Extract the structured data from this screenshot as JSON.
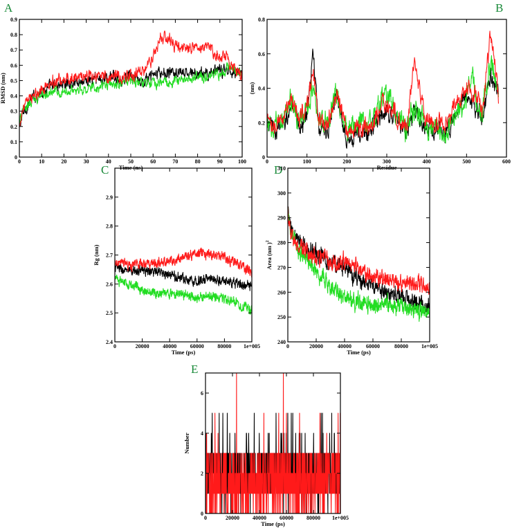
{
  "colors": {
    "black": "#000000",
    "red": "#ff1a1a",
    "green": "#22dd22",
    "letter": "#1a8a3a"
  },
  "chart_data": [
    {
      "id": "A",
      "type": "line",
      "panel_label": "A",
      "xlabel": "Time (ns)",
      "ylabel": "RMSD (nm)",
      "xlim": [
        0,
        100
      ],
      "ylim": [
        0,
        0.9
      ],
      "xticks": [
        0,
        10,
        20,
        30,
        40,
        50,
        60,
        70,
        80,
        90,
        100
      ],
      "yticks": [
        0,
        0.1,
        0.2,
        0.3,
        0.4,
        0.5,
        0.6,
        0.7,
        0.8,
        0.9
      ],
      "xtick_labels": [
        "0",
        "10",
        "20",
        "30",
        "40",
        "50",
        "60",
        "70",
        "80",
        "90",
        "100"
      ],
      "ytick_labels": [
        "0",
        "0.1",
        "0.2",
        "0.3",
        "0.4",
        "0.5",
        "0.6",
        "0.7",
        "0.8",
        "0.9"
      ],
      "grid": false,
      "series": [
        {
          "color": "black",
          "x": [
            0,
            2,
            5,
            10,
            15,
            20,
            30,
            40,
            50,
            55,
            60,
            70,
            80,
            90,
            95,
            100
          ],
          "y": [
            0.2,
            0.3,
            0.37,
            0.43,
            0.46,
            0.48,
            0.5,
            0.52,
            0.52,
            0.48,
            0.54,
            0.55,
            0.54,
            0.56,
            0.57,
            0.55
          ],
          "noise": 0.03
        },
        {
          "color": "green",
          "x": [
            0,
            2,
            5,
            10,
            15,
            20,
            30,
            40,
            50,
            60,
            70,
            80,
            90,
            95,
            100
          ],
          "y": [
            0.22,
            0.32,
            0.36,
            0.4,
            0.42,
            0.43,
            0.45,
            0.47,
            0.49,
            0.48,
            0.5,
            0.52,
            0.55,
            0.58,
            0.56
          ],
          "noise": 0.025
        },
        {
          "color": "red",
          "x": [
            0,
            2,
            5,
            10,
            15,
            20,
            30,
            40,
            50,
            55,
            60,
            63,
            66,
            70,
            80,
            85,
            90,
            93,
            96,
            100
          ],
          "y": [
            0.2,
            0.33,
            0.38,
            0.44,
            0.49,
            0.52,
            0.52,
            0.53,
            0.53,
            0.55,
            0.65,
            0.76,
            0.78,
            0.72,
            0.71,
            0.72,
            0.65,
            0.66,
            0.6,
            0.52
          ],
          "noise": 0.03
        }
      ]
    },
    {
      "id": "B",
      "type": "line",
      "panel_label": "B",
      "xlabel": "Residue",
      "ylabel": "(nm)",
      "xlim": [
        0,
        600
      ],
      "ylim": [
        0,
        0.8
      ],
      "xticks": [
        0,
        100,
        200,
        300,
        400,
        500,
        600
      ],
      "yticks": [
        0,
        0.2,
        0.4,
        0.6,
        0.8
      ],
      "xtick_labels": [
        "0",
        "100",
        "200",
        "300",
        "400",
        "500",
        "600"
      ],
      "ytick_labels": [
        "0",
        "0.2",
        "0.4",
        "0.6",
        "0.8"
      ],
      "grid": false,
      "series": [
        {
          "color": "black",
          "x": [
            0,
            20,
            40,
            60,
            80,
            100,
            115,
            130,
            150,
            175,
            200,
            250,
            300,
            320,
            350,
            370,
            400,
            450,
            500,
            510,
            540,
            560,
            580
          ],
          "y": [
            0.2,
            0.15,
            0.18,
            0.3,
            0.17,
            0.25,
            0.6,
            0.18,
            0.15,
            0.35,
            0.12,
            0.13,
            0.28,
            0.22,
            0.15,
            0.28,
            0.15,
            0.15,
            0.38,
            0.32,
            0.22,
            0.48,
            0.35
          ],
          "noise": 0.04
        },
        {
          "color": "green",
          "x": [
            0,
            20,
            40,
            60,
            80,
            100,
            115,
            130,
            150,
            175,
            200,
            230,
            250,
            300,
            320,
            350,
            370,
            400,
            450,
            500,
            510,
            540,
            560,
            580
          ],
          "y": [
            0.18,
            0.16,
            0.2,
            0.33,
            0.2,
            0.28,
            0.45,
            0.2,
            0.18,
            0.38,
            0.15,
            0.22,
            0.18,
            0.38,
            0.25,
            0.16,
            0.3,
            0.17,
            0.16,
            0.35,
            0.45,
            0.25,
            0.55,
            0.4
          ],
          "noise": 0.05
        },
        {
          "color": "red",
          "x": [
            0,
            20,
            40,
            60,
            80,
            100,
            115,
            130,
            150,
            175,
            200,
            250,
            300,
            320,
            350,
            370,
            400,
            450,
            500,
            510,
            540,
            560,
            580
          ],
          "y": [
            0.22,
            0.17,
            0.22,
            0.33,
            0.22,
            0.3,
            0.5,
            0.22,
            0.18,
            0.36,
            0.15,
            0.17,
            0.32,
            0.25,
            0.17,
            0.55,
            0.2,
            0.2,
            0.4,
            0.4,
            0.28,
            0.72,
            0.38
          ],
          "noise": 0.04
        }
      ]
    },
    {
      "id": "C",
      "type": "line",
      "panel_label": "C",
      "xlabel": "Time (ps)",
      "ylabel": "Rg (nm)",
      "xlim": [
        0,
        100000
      ],
      "ylim": [
        2.4,
        3.0
      ],
      "xticks": [
        0,
        20000,
        40000,
        60000,
        80000,
        100000
      ],
      "yticks": [
        2.4,
        2.5,
        2.6,
        2.7,
        2.8,
        2.9
      ],
      "xtick_labels": [
        "0",
        "20000",
        "40000",
        "60000",
        "80000",
        "1e+005"
      ],
      "ytick_labels": [
        "2.4",
        "2.5",
        "2.6",
        "2.7",
        "2.8",
        "2.9"
      ],
      "grid": false,
      "series": [
        {
          "color": "black",
          "x": [
            0,
            10000,
            20000,
            30000,
            40000,
            50000,
            60000,
            70000,
            80000,
            90000,
            100000
          ],
          "y": [
            2.66,
            2.64,
            2.65,
            2.64,
            2.63,
            2.62,
            2.61,
            2.62,
            2.61,
            2.6,
            2.59
          ],
          "noise": 0.012
        },
        {
          "color": "green",
          "x": [
            0,
            10000,
            20000,
            30000,
            40000,
            50000,
            60000,
            70000,
            80000,
            90000,
            100000
          ],
          "y": [
            2.62,
            2.6,
            2.58,
            2.57,
            2.57,
            2.56,
            2.55,
            2.56,
            2.55,
            2.53,
            2.51
          ],
          "noise": 0.012
        },
        {
          "color": "red",
          "x": [
            0,
            10000,
            20000,
            30000,
            40000,
            50000,
            60000,
            70000,
            80000,
            90000,
            100000
          ],
          "y": [
            2.68,
            2.66,
            2.67,
            2.67,
            2.68,
            2.69,
            2.71,
            2.7,
            2.69,
            2.67,
            2.64
          ],
          "noise": 0.012
        }
      ]
    },
    {
      "id": "D",
      "type": "line",
      "panel_label": "D",
      "xlabel": "Time (ps)",
      "ylabel": "Area (nm )",
      "ylabel_sup": "2",
      "xlim": [
        0,
        100000
      ],
      "ylim": [
        240,
        310
      ],
      "xticks": [
        0,
        20000,
        40000,
        60000,
        80000,
        100000
      ],
      "yticks": [
        240,
        250,
        260,
        270,
        280,
        290,
        300,
        310
      ],
      "xtick_labels": [
        "0",
        "20000",
        "40000",
        "60000",
        "80000",
        "1e+005"
      ],
      "ytick_labels": [
        "240",
        "250",
        "260",
        "270",
        "280",
        "290",
        "300",
        "310"
      ],
      "grid": false,
      "series": [
        {
          "color": "black",
          "x": [
            0,
            2000,
            5000,
            10000,
            20000,
            30000,
            40000,
            50000,
            60000,
            70000,
            80000,
            90000,
            100000
          ],
          "y": [
            292,
            285,
            282,
            279,
            276,
            272,
            270,
            265,
            262,
            260,
            258,
            256,
            254
          ],
          "noise": 2.5
        },
        {
          "color": "green",
          "x": [
            0,
            2000,
            5000,
            10000,
            20000,
            30000,
            40000,
            50000,
            60000,
            70000,
            80000,
            90000,
            100000
          ],
          "y": [
            292,
            284,
            280,
            275,
            268,
            262,
            258,
            256,
            255,
            255,
            254,
            253,
            252
          ],
          "noise": 2.5
        },
        {
          "color": "red",
          "x": [
            0,
            2000,
            5000,
            10000,
            20000,
            30000,
            40000,
            50000,
            60000,
            70000,
            80000,
            90000,
            100000
          ],
          "y": [
            293,
            285,
            280,
            277,
            275,
            272,
            272,
            270,
            266,
            265,
            264,
            263,
            262
          ],
          "noise": 2.5
        }
      ]
    },
    {
      "id": "E",
      "type": "line",
      "panel_label": "E",
      "xlabel": "Time (ps)",
      "ylabel": "Number",
      "xlim": [
        0,
        100000
      ],
      "ylim": [
        0,
        7
      ],
      "xticks": [
        0,
        20000,
        40000,
        60000,
        80000,
        100000
      ],
      "yticks": [
        0,
        2,
        4,
        6
      ],
      "xtick_labels": [
        "0",
        "20000",
        "40000",
        "60000",
        "80000",
        "1e+005"
      ],
      "ytick_labels": [
        "0",
        "2",
        "4",
        "6"
      ],
      "grid": false,
      "series": [
        {
          "color": "black",
          "mode": "integer-hbonds",
          "mean": 2.0,
          "max": 5
        },
        {
          "color": "red",
          "mode": "integer-hbonds",
          "mean": 1.6,
          "max": 7
        }
      ]
    }
  ]
}
